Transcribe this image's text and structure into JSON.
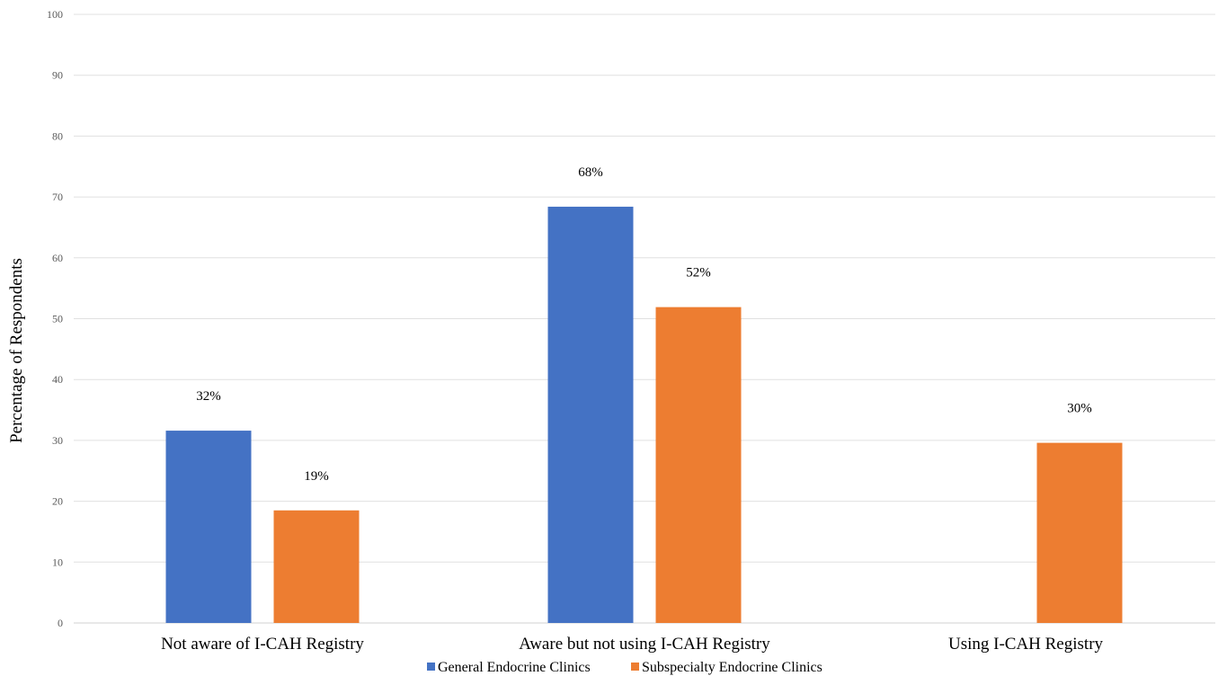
{
  "chart_data": {
    "type": "bar",
    "title": "",
    "xlabel": "",
    "ylabel": "Percentage of Respondents",
    "ylim": [
      0,
      100
    ],
    "yticks": [
      0,
      10,
      20,
      30,
      40,
      50,
      60,
      70,
      80,
      90,
      100
    ],
    "grid": true,
    "legend_position": "bottom",
    "categories": [
      "Not aware of I-CAH Registry",
      "Aware but not using I-CAH Registry",
      "Using I-CAH Registry"
    ],
    "series": [
      {
        "name": "General Endocrine Clinics",
        "color": "#4472C4",
        "values": [
          31.6,
          68.4,
          0
        ],
        "labels": [
          "32%",
          "68%",
          null
        ]
      },
      {
        "name": "Subspecialty Endocrine Clinics",
        "color": "#ED7D31",
        "values": [
          18.5,
          51.9,
          29.6
        ],
        "labels": [
          "19%",
          "52%",
          "30%"
        ]
      }
    ]
  }
}
